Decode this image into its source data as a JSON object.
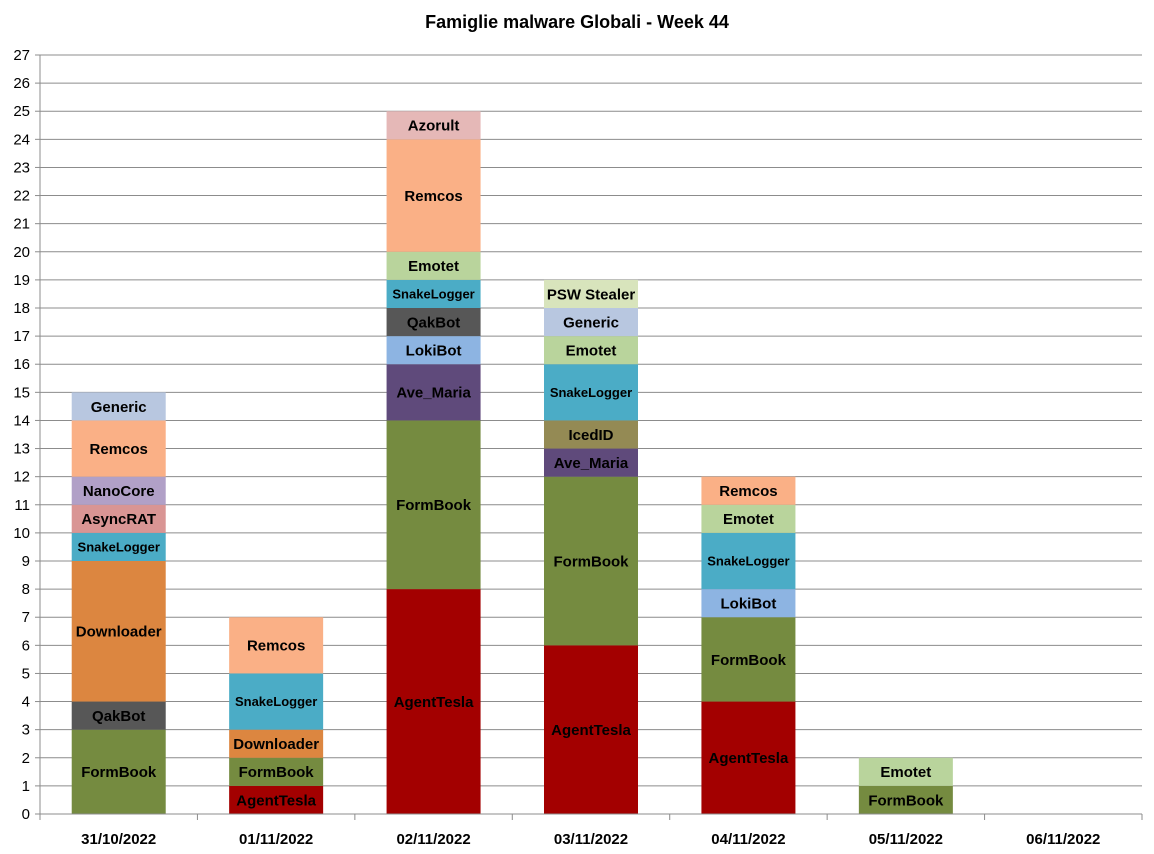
{
  "chart_data": {
    "type": "bar",
    "stacked": true,
    "title": "Famiglie  malware Globali - Week 44",
    "xlabel": "",
    "ylabel": "",
    "ylim": [
      0,
      27
    ],
    "yticks": [
      0,
      1,
      2,
      3,
      4,
      5,
      6,
      7,
      8,
      9,
      10,
      11,
      12,
      13,
      14,
      15,
      16,
      17,
      18,
      19,
      20,
      21,
      22,
      23,
      24,
      25,
      26,
      27
    ],
    "grid": true,
    "legend": "none",
    "categories": [
      "31/10/2022",
      "01/11/2022",
      "02/11/2022",
      "03/11/2022",
      "04/11/2022",
      "05/11/2022",
      "06/11/2022"
    ],
    "colors": {
      "AgentTesla": "#a30000",
      "FormBook": "#758b40",
      "QakBot": "#575757",
      "Downloader": "#dc8640",
      "SnakeLogger": "#4bacc6",
      "AsyncRAT": "#d99594",
      "NanoCore": "#b1a0c7",
      "Remcos": "#fab086",
      "Generic": "#b8c7e0",
      "Ave_Maria": "#5f4a7b",
      "LokiBot": "#8db4e2",
      "Emotet": "#b9d49c",
      "Azorult": "#e5b8b7",
      "IcedID": "#948a54",
      "PSW Stealer": "#d8e4bc"
    },
    "stacks": [
      [
        {
          "name": "FormBook",
          "value": 3
        },
        {
          "name": "QakBot",
          "value": 1
        },
        {
          "name": "Downloader",
          "value": 5
        },
        {
          "name": "SnakeLogger",
          "value": 1
        },
        {
          "name": "AsyncRAT",
          "value": 1
        },
        {
          "name": "NanoCore",
          "value": 1
        },
        {
          "name": "Remcos",
          "value": 2
        },
        {
          "name": "Generic",
          "value": 1
        }
      ],
      [
        {
          "name": "AgentTesla",
          "value": 1
        },
        {
          "name": "FormBook",
          "value": 1
        },
        {
          "name": "Downloader",
          "value": 1
        },
        {
          "name": "SnakeLogger",
          "value": 2
        },
        {
          "name": "Remcos",
          "value": 2
        }
      ],
      [
        {
          "name": "AgentTesla",
          "value": 8
        },
        {
          "name": "FormBook",
          "value": 6
        },
        {
          "name": "Ave_Maria",
          "value": 2
        },
        {
          "name": "LokiBot",
          "value": 1
        },
        {
          "name": "QakBot",
          "value": 1
        },
        {
          "name": "SnakeLogger",
          "value": 1
        },
        {
          "name": "Emotet",
          "value": 1
        },
        {
          "name": "Remcos",
          "value": 4
        },
        {
          "name": "Azorult",
          "value": 1
        }
      ],
      [
        {
          "name": "AgentTesla",
          "value": 6
        },
        {
          "name": "FormBook",
          "value": 6
        },
        {
          "name": "Ave_Maria",
          "value": 1
        },
        {
          "name": "IcedID",
          "value": 1
        },
        {
          "name": "SnakeLogger",
          "value": 2
        },
        {
          "name": "Emotet",
          "value": 1
        },
        {
          "name": "Generic",
          "value": 1
        },
        {
          "name": "PSW Stealer",
          "value": 1
        }
      ],
      [
        {
          "name": "AgentTesla",
          "value": 4
        },
        {
          "name": "FormBook",
          "value": 3
        },
        {
          "name": "LokiBot",
          "value": 1
        },
        {
          "name": "SnakeLogger",
          "value": 2
        },
        {
          "name": "Emotet",
          "value": 1
        },
        {
          "name": "Remcos",
          "value": 1
        }
      ],
      [
        {
          "name": "FormBook",
          "value": 1
        },
        {
          "name": "Emotet",
          "value": 1
        }
      ],
      []
    ]
  }
}
